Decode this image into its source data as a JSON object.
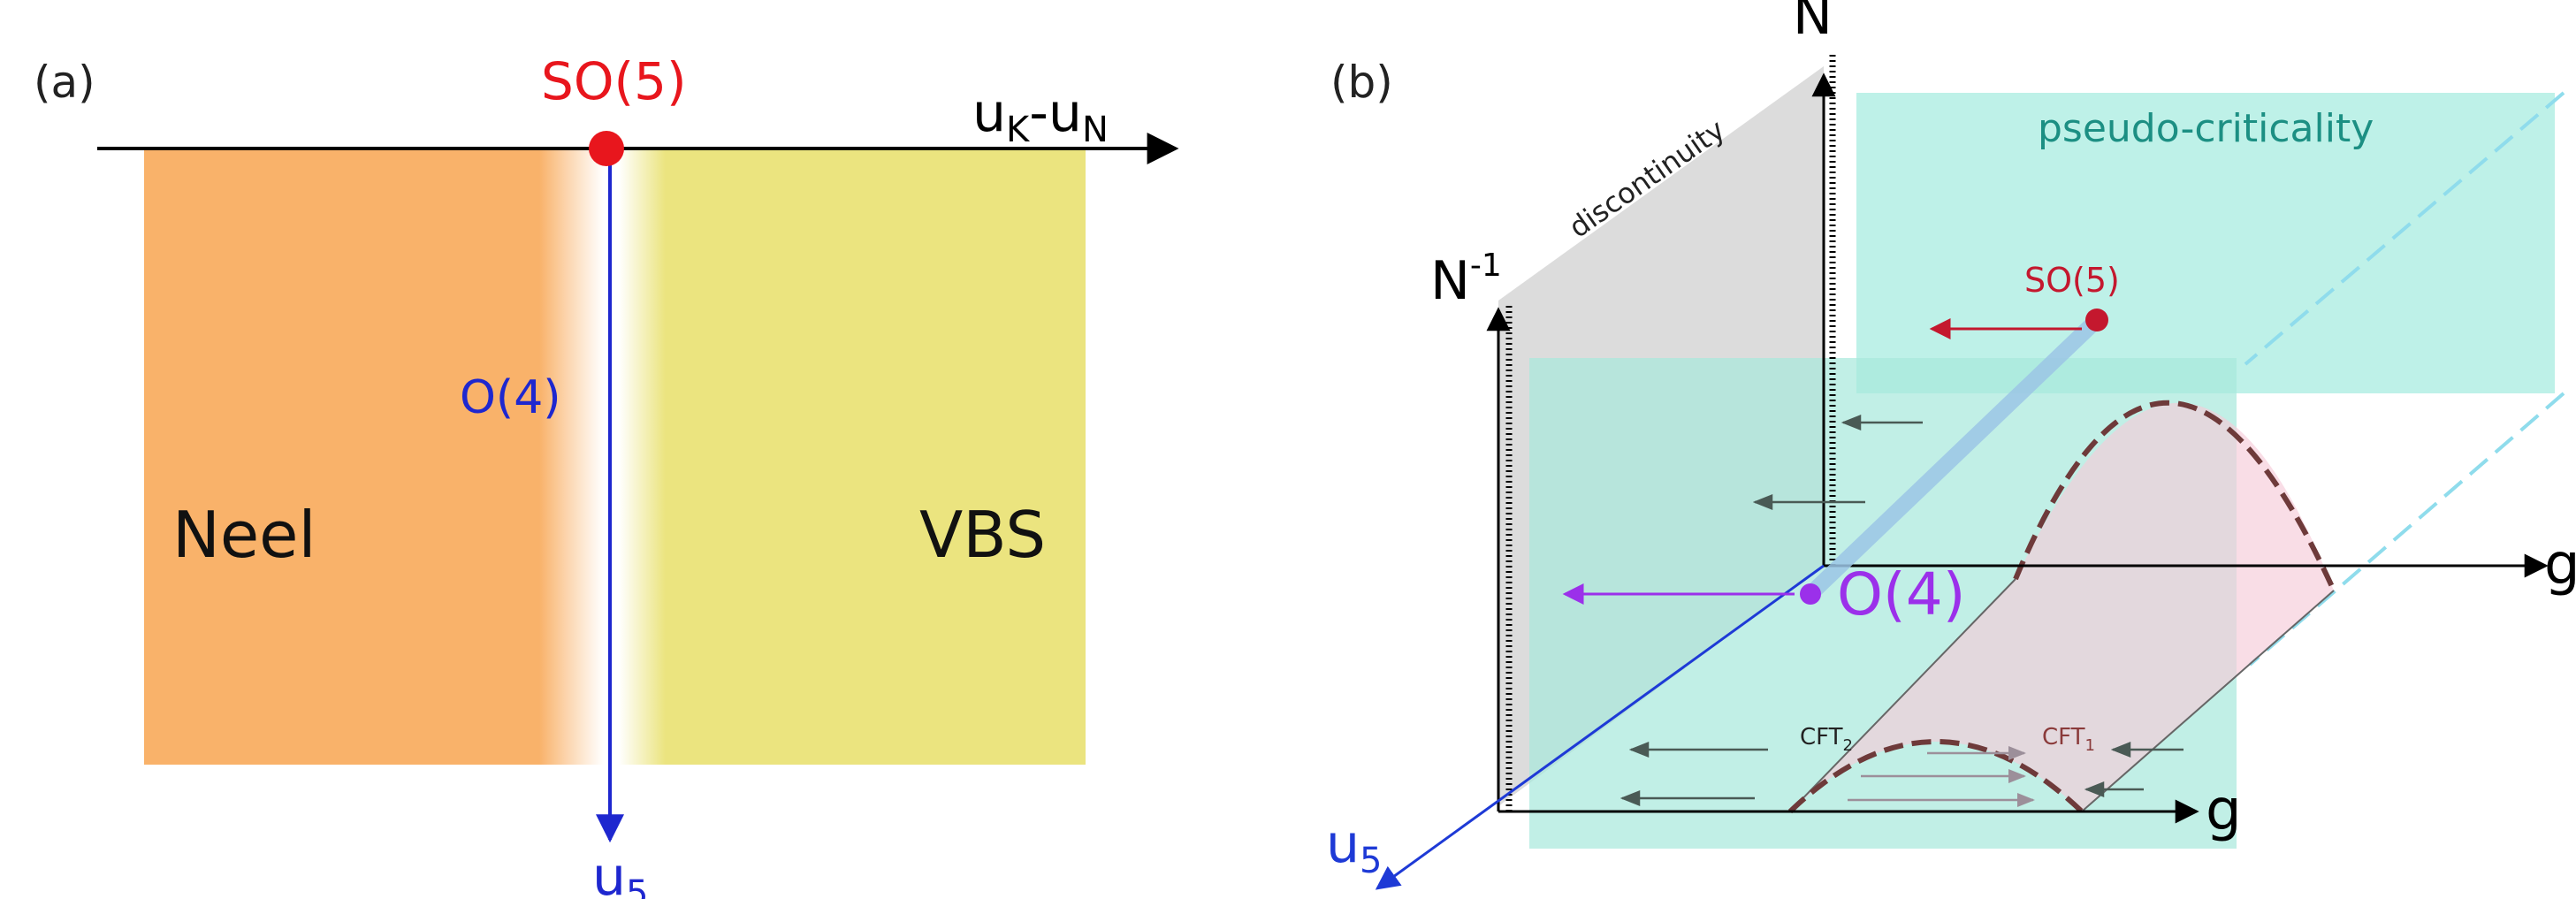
{
  "panel_a": {
    "label": "(a)",
    "top_point": "SO(5)",
    "mid_point": "O(4)",
    "axis_h_main": "u",
    "axis_h_sub1": "K",
    "axis_h_dash": "-u",
    "axis_h_sub2": "N",
    "axis_v_main": "u",
    "axis_v_sub": "5",
    "left_region": "Neel",
    "right_region": "VBS",
    "colors": {
      "neel": "#f9b26a",
      "vbs": "#ebe47f",
      "so5": "#e8161d",
      "o4_axis": "#1e27cf"
    }
  },
  "panel_b": {
    "label": "(b)",
    "back_axis": "N",
    "front_axis_main": "N",
    "front_axis_sup": "-1",
    "wall_label": "discontinuity",
    "top_region": "pseudo-criticality",
    "so5": "SO(5)",
    "o4": "O(4)",
    "g_upper": "g",
    "g_lower": "g",
    "u5_main": "u",
    "u5_sub": "5",
    "cft2_main": "CFT",
    "cft2_sub": "2",
    "cft1_main": "CFT",
    "cft1_sub": "1",
    "colors": {
      "teal": "#b3eee4",
      "pink": "#f6cbd9",
      "gray_wall": "#d6d6d6",
      "o4": "#9b30ea",
      "so5": "#c4182e",
      "u5": "#1e3ad6",
      "dash_blue": "#8fdcec"
    }
  }
}
